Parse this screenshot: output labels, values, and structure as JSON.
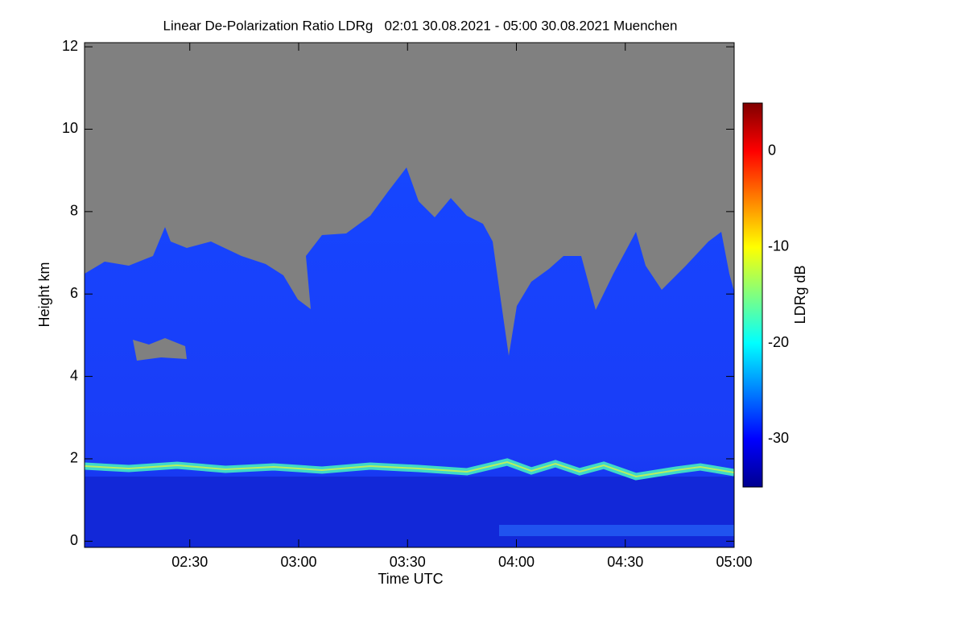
{
  "chart_data": {
    "type": "heatmap",
    "title": "Linear De-Polarization Ratio LDRg   02:01 30.08.2021 - 05:00 30.08.2021 Muenchen",
    "x_label": "Time UTC",
    "y_label": "Height km",
    "colorbar_label": "LDRg dB",
    "xlim": [
      121,
      300
    ],
    "xticks": [
      {
        "value": 150,
        "label": "02:30"
      },
      {
        "value": 180,
        "label": "03:00"
      },
      {
        "value": 210,
        "label": "03:30"
      },
      {
        "value": 240,
        "label": "04:00"
      },
      {
        "value": 270,
        "label": "04:30"
      },
      {
        "value": 300,
        "label": "05:00"
      }
    ],
    "ylim": [
      -0.15,
      12.1
    ],
    "yticks": [
      0,
      2,
      4,
      6,
      8,
      10,
      12
    ],
    "zlim": [
      -35,
      5
    ],
    "zticks": [
      -30,
      -20,
      -10,
      0
    ],
    "colormap": [
      "#00008f",
      "#0000ff",
      "#0080ff",
      "#00ffff",
      "#80ff80",
      "#ffff00",
      "#ff8000",
      "#ff0000",
      "#800000"
    ]
  }
}
